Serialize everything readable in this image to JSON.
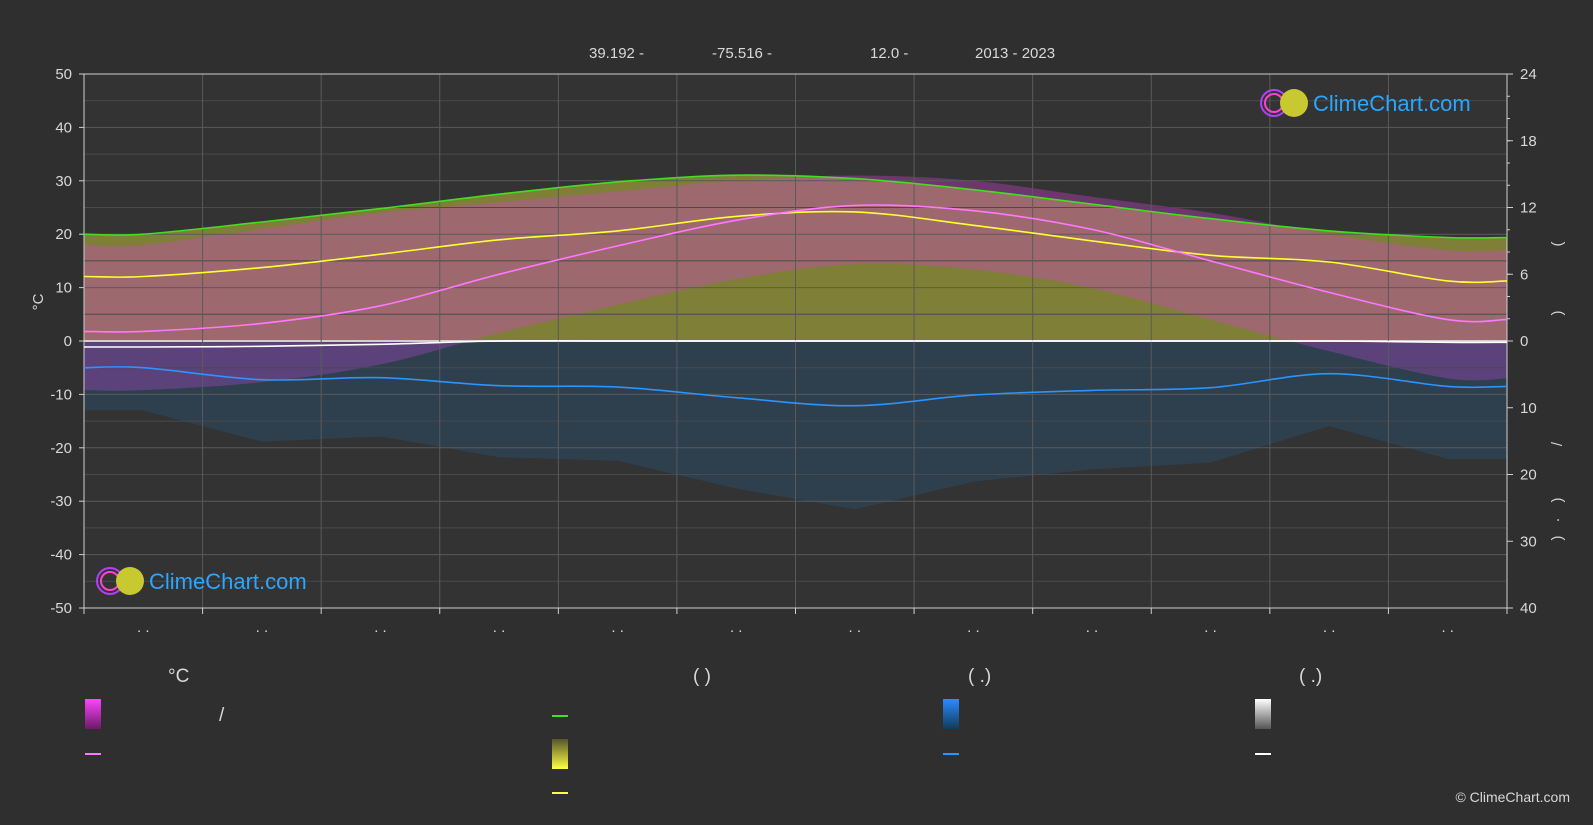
{
  "header": {
    "latitude": "39.192 -",
    "longitude": "-75.516 -",
    "elevation": "12.0 -",
    "years": "2013 - 2023"
  },
  "brand": {
    "name": "ClimeChart.com",
    "copyright": "© ClimeChart.com"
  },
  "colors": {
    "temp_band": "#d83fd8",
    "temp_mean": "#ff77ff",
    "daylight": "#44dd22",
    "sunshine_band": "#bdbd3a",
    "sunshine_mean": "#ffff33",
    "rain_band": "#1f6fb0",
    "rain_mean": "#2a94ff",
    "snow_mean": "#ffffff",
    "grid": "#5a5a5a"
  },
  "chart_data": {
    "type": "line",
    "xlabel": "",
    "ylabel": "°C",
    "ylim": [
      -50,
      50
    ],
    "yticks": [
      50,
      40,
      30,
      20,
      10,
      0,
      -10,
      -20,
      -30,
      -40,
      -50
    ],
    "y2_upper_ticks": [
      24,
      18,
      12,
      6,
      0
    ],
    "y2_upper_range": [
      0,
      24
    ],
    "y2_lower_ticks": [
      10,
      20,
      30,
      40
    ],
    "y2_lower_range": [
      0,
      40
    ],
    "y2_labels": [
      "(",
      ")",
      ")",
      "(",
      "/",
      ")",
      "(",
      "·",
      ")"
    ],
    "month_tick_labels": [
      ". .",
      ". .",
      ". .",
      ". .",
      ". .",
      ". .",
      ". .",
      ". .",
      ". .",
      ". .",
      ". .",
      ". ."
    ],
    "months": 12,
    "grid": true,
    "series": [
      {
        "key": "daylight",
        "axis": "hours",
        "values": [
          9.6,
          10.7,
          11.9,
          13.2,
          14.3,
          14.9,
          14.6,
          13.6,
          12.3,
          11.0,
          9.9,
          9.3
        ]
      },
      {
        "key": "sunshine_mean",
        "axis": "hours",
        "values": [
          5.8,
          6.6,
          7.8,
          9.1,
          9.9,
          11.2,
          11.6,
          10.4,
          9.0,
          7.7,
          7.1,
          5.4
        ]
      },
      {
        "key": "temp_mean",
        "axis": "celsius",
        "values": [
          1.8,
          3.3,
          6.6,
          12.5,
          17.8,
          22.6,
          25.4,
          24.4,
          20.9,
          15.0,
          9.1,
          4.0
        ]
      },
      {
        "key": "temp_max_band",
        "axis": "celsius",
        "values": [
          18,
          21,
          24,
          26,
          28,
          30,
          31,
          30,
          27,
          24,
          20,
          17
        ]
      },
      {
        "key": "rain_mean",
        "axis": "mm",
        "values": [
          4.0,
          5.8,
          5.5,
          6.7,
          6.9,
          8.5,
          9.7,
          8.1,
          7.4,
          7.0,
          4.9,
          6.8
        ]
      },
      {
        "key": "snow_mean",
        "axis": "mm",
        "values": [
          0.9,
          0.8,
          0.5,
          0.0,
          0.0,
          0.0,
          0.0,
          0.0,
          0.0,
          0.0,
          0.0,
          0.2
        ]
      }
    ]
  },
  "legend": {
    "col1_header": "°C",
    "col1_item1_text": "/",
    "col2_header": "(          )",
    "col3_header": "(    .)",
    "col4_header": "(    .)"
  }
}
